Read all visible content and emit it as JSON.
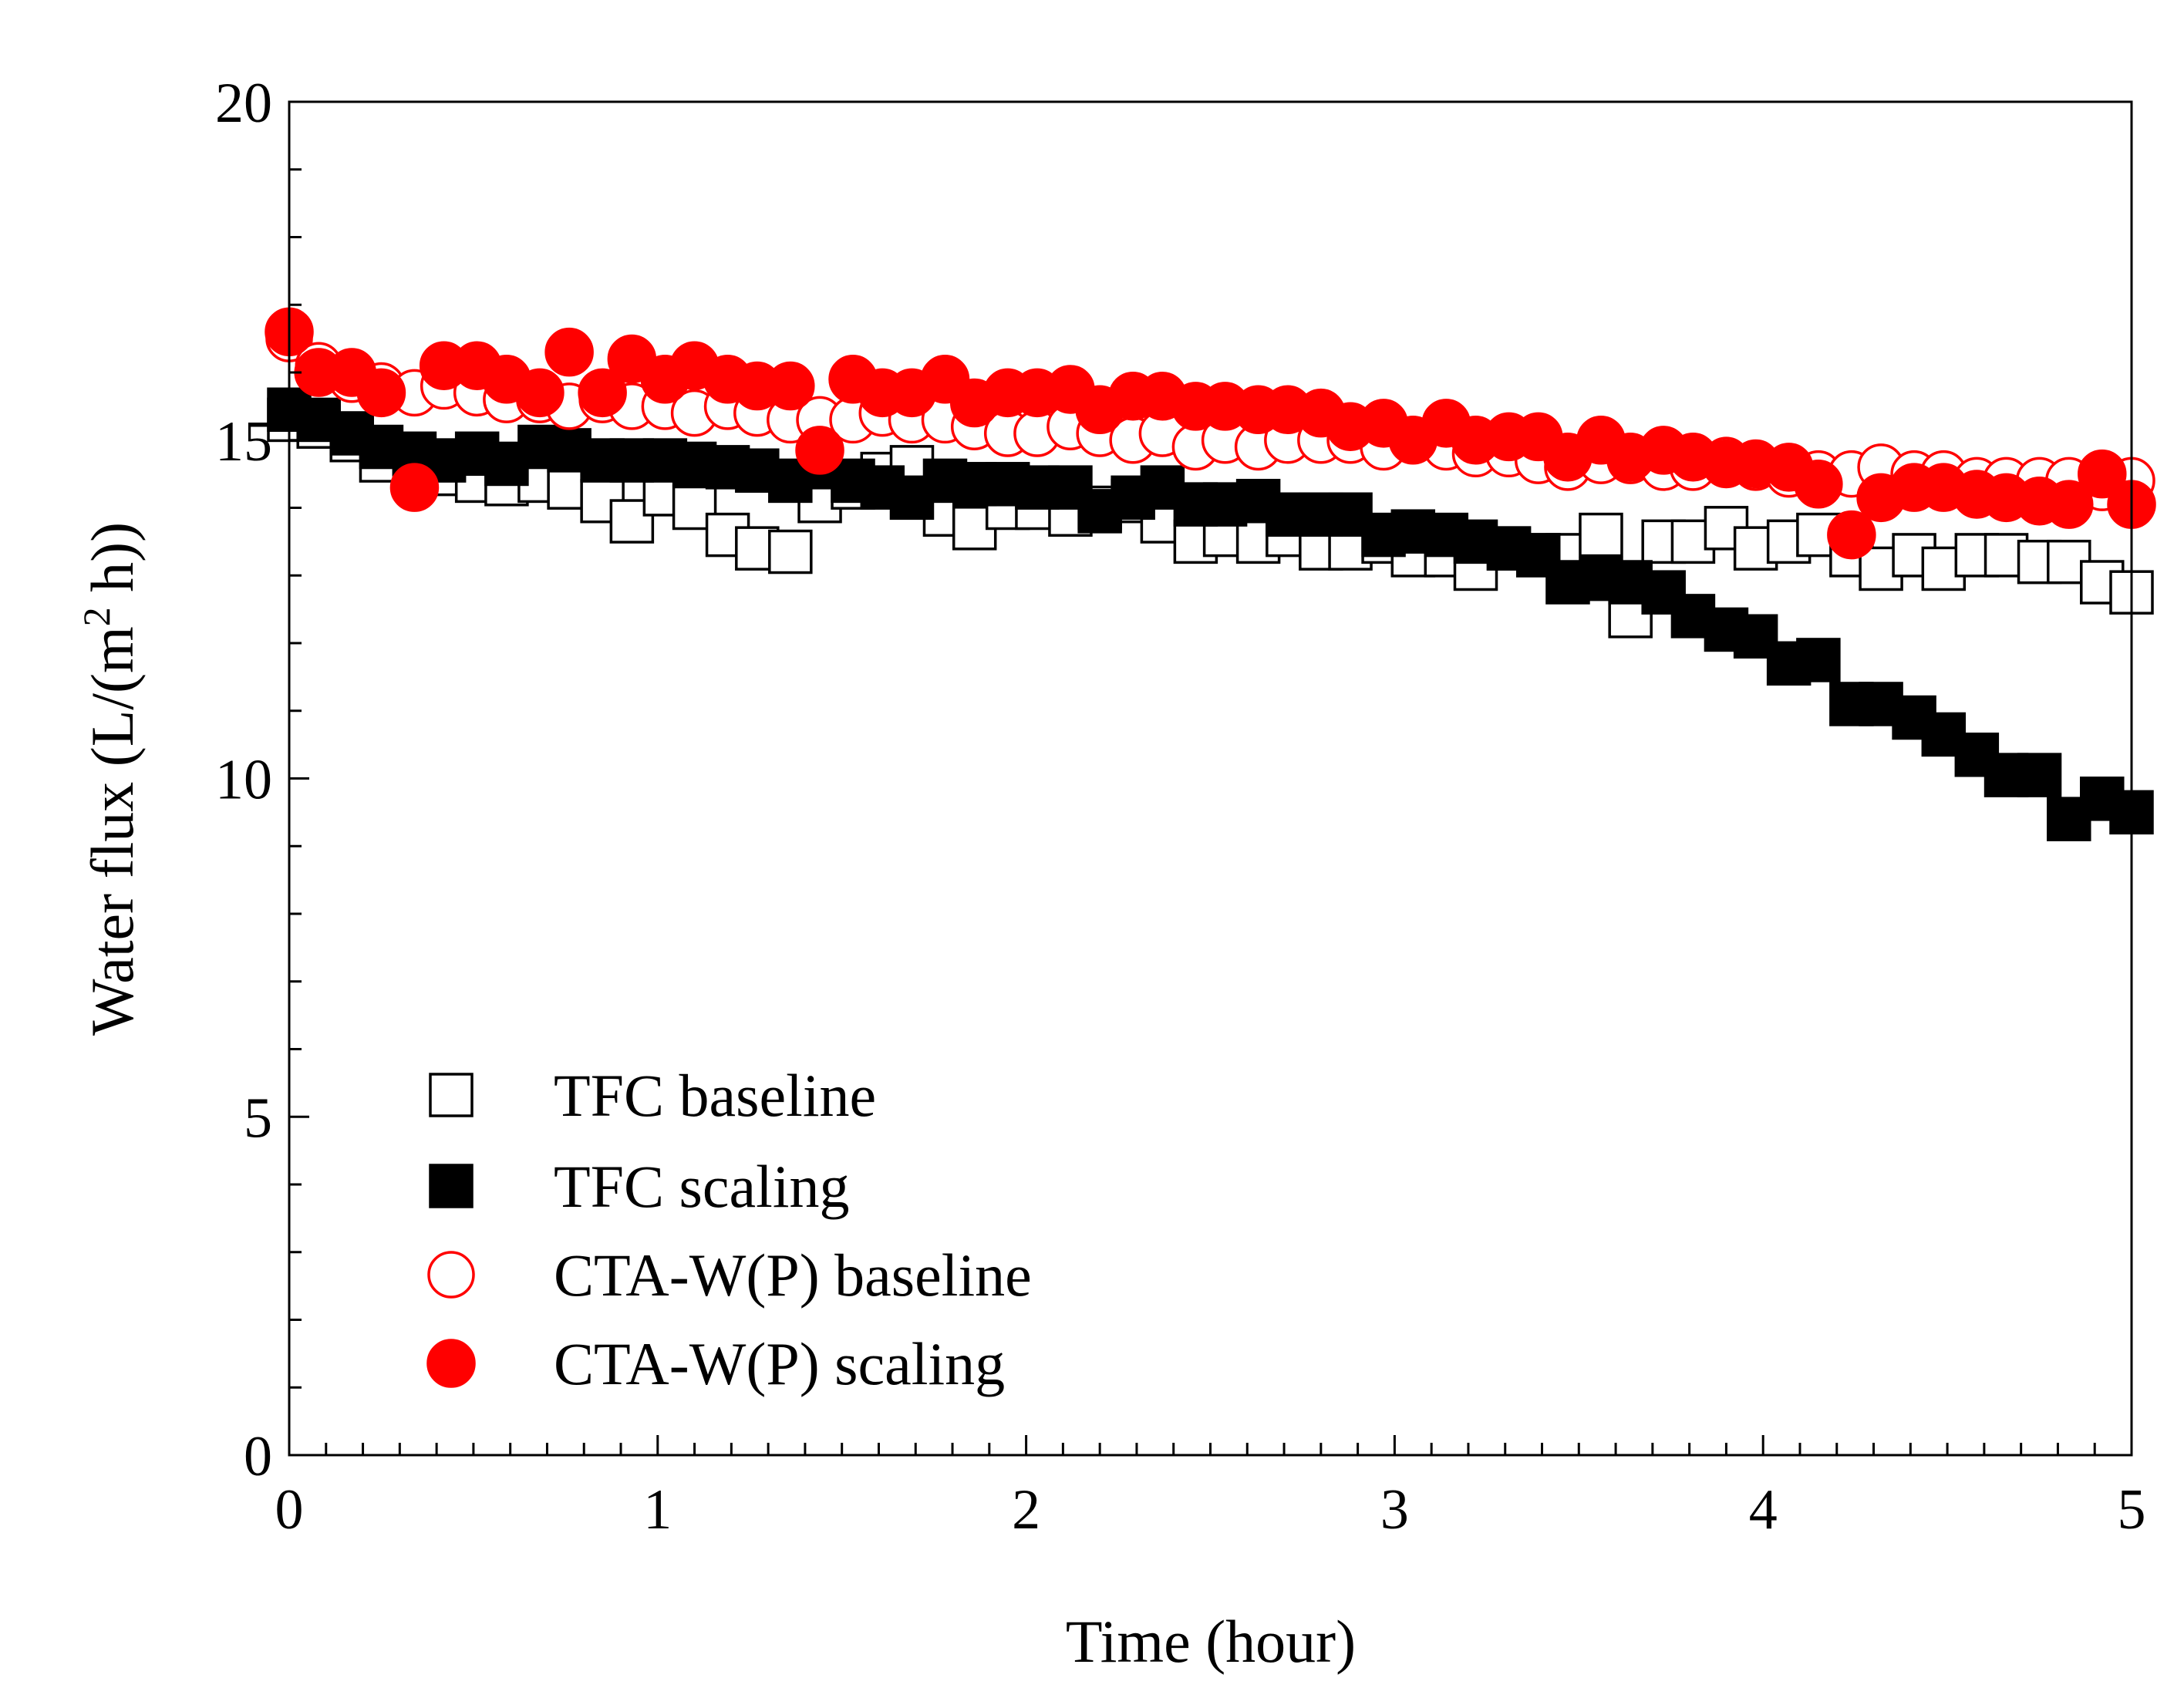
{
  "chart_data": {
    "type": "scatter",
    "title": "",
    "xlabel": "Time (hour)",
    "ylabel_parts": {
      "main": "Water flux (L/(m",
      "sup": "2",
      "tail": " h))"
    },
    "xlim": [
      0,
      5
    ],
    "ylim": [
      0,
      20
    ],
    "x_ticks": [
      "0",
      "1",
      "2",
      "3",
      "4",
      "5"
    ],
    "y_ticks": [
      "0",
      "5",
      "10",
      "15",
      "20"
    ],
    "grid": false,
    "legend_position": "bottom-left",
    "x": [
      0,
      0.08,
      0.17,
      0.25,
      0.34,
      0.42,
      0.51,
      0.59,
      0.68,
      0.76,
      0.85,
      0.93,
      1.02,
      1.1,
      1.19,
      1.27,
      1.36,
      1.44,
      1.53,
      1.61,
      1.69,
      1.78,
      1.86,
      1.95,
      2.03,
      2.12,
      2.2,
      2.29,
      2.37,
      2.46,
      2.54,
      2.63,
      2.71,
      2.8,
      2.88,
      2.97,
      3.05,
      3.14,
      3.22,
      3.31,
      3.39,
      3.47,
      3.56,
      3.64,
      3.73,
      3.81,
      3.9,
      3.98,
      4.07,
      4.15,
      4.24,
      4.32,
      4.41,
      4.49,
      4.58,
      4.66,
      4.75,
      4.83,
      4.92,
      5.0
    ],
    "series": [
      {
        "name": "TFC baseline",
        "marker": "square",
        "filled": false,
        "color": "#000000",
        "values": [
          15.3,
          15.2,
          15.0,
          14.7,
          14.6,
          14.5,
          14.4,
          14.35,
          14.4,
          14.3,
          14.1,
          13.8,
          14.2,
          14.0,
          13.6,
          13.4,
          13.35,
          14.1,
          14.3,
          14.5,
          14.6,
          13.9,
          13.7,
          14.0,
          14.0,
          13.9,
          14.0,
          14.1,
          13.8,
          13.5,
          13.6,
          13.5,
          13.6,
          13.4,
          13.4,
          13.5,
          13.3,
          13.3,
          13.1,
          13.4,
          13.3,
          13.3,
          13.6,
          12.4,
          13.5,
          13.5,
          13.7,
          13.4,
          13.5,
          13.6,
          13.3,
          13.1,
          13.3,
          13.1,
          13.3,
          13.3,
          13.2,
          13.2,
          12.9,
          12.75
        ]
      },
      {
        "name": "TFC scaling",
        "marker": "square",
        "filled": true,
        "color": "#000000",
        "values": [
          15.45,
          15.3,
          15.1,
          14.9,
          14.8,
          14.7,
          14.8,
          14.65,
          14.9,
          14.85,
          14.7,
          14.7,
          14.7,
          14.65,
          14.6,
          14.55,
          14.4,
          14.6,
          14.4,
          14.3,
          14.15,
          14.4,
          14.35,
          14.35,
          14.3,
          14.3,
          13.95,
          14.15,
          14.3,
          14.05,
          14.05,
          14.1,
          13.9,
          13.9,
          13.9,
          13.6,
          13.65,
          13.6,
          13.5,
          13.4,
          13.3,
          12.9,
          12.95,
          12.9,
          12.75,
          12.4,
          12.2,
          12.1,
          11.7,
          11.75,
          11.1,
          11.1,
          10.9,
          10.65,
          10.35,
          10.05,
          10.05,
          9.4,
          9.7,
          9.5
        ]
      },
      {
        "name": "CTA-W(P) baseline",
        "marker": "circle",
        "filled": false,
        "color": "#ff0000",
        "values": [
          16.5,
          16.1,
          15.9,
          15.8,
          15.7,
          15.8,
          15.7,
          15.6,
          15.6,
          15.5,
          15.6,
          15.5,
          15.5,
          15.4,
          15.5,
          15.4,
          15.3,
          15.3,
          15.3,
          15.4,
          15.3,
          15.3,
          15.2,
          15.1,
          15.1,
          15.2,
          15.1,
          15.0,
          15.1,
          14.9,
          15.0,
          14.9,
          15.0,
          15.0,
          15.0,
          14.9,
          15.0,
          14.9,
          14.8,
          14.8,
          14.7,
          14.6,
          14.7,
          14.7,
          14.6,
          14.6,
          14.7,
          14.6,
          14.5,
          14.5,
          14.5,
          14.6,
          14.5,
          14.5,
          14.4,
          14.4,
          14.4,
          14.4,
          14.3,
          14.4
        ]
      },
      {
        "name": "CTA-W(P) scaling",
        "marker": "circle",
        "filled": true,
        "color": "#ff0000",
        "values": [
          16.6,
          16.0,
          16.0,
          15.7,
          14.3,
          16.1,
          16.1,
          15.9,
          15.7,
          16.3,
          15.7,
          16.2,
          15.9,
          16.1,
          15.9,
          15.8,
          15.8,
          14.85,
          15.9,
          15.7,
          15.7,
          15.9,
          15.55,
          15.7,
          15.7,
          15.75,
          15.45,
          15.65,
          15.65,
          15.5,
          15.5,
          15.45,
          15.45,
          15.4,
          15.2,
          15.25,
          15.0,
          15.25,
          15.0,
          15.05,
          15.05,
          14.75,
          15.0,
          14.75,
          14.85,
          14.75,
          14.65,
          14.65,
          14.6,
          14.35,
          13.6,
          14.15,
          14.3,
          14.3,
          14.2,
          14.15,
          14.1,
          14.05,
          14.5,
          14.05
        ]
      }
    ]
  }
}
